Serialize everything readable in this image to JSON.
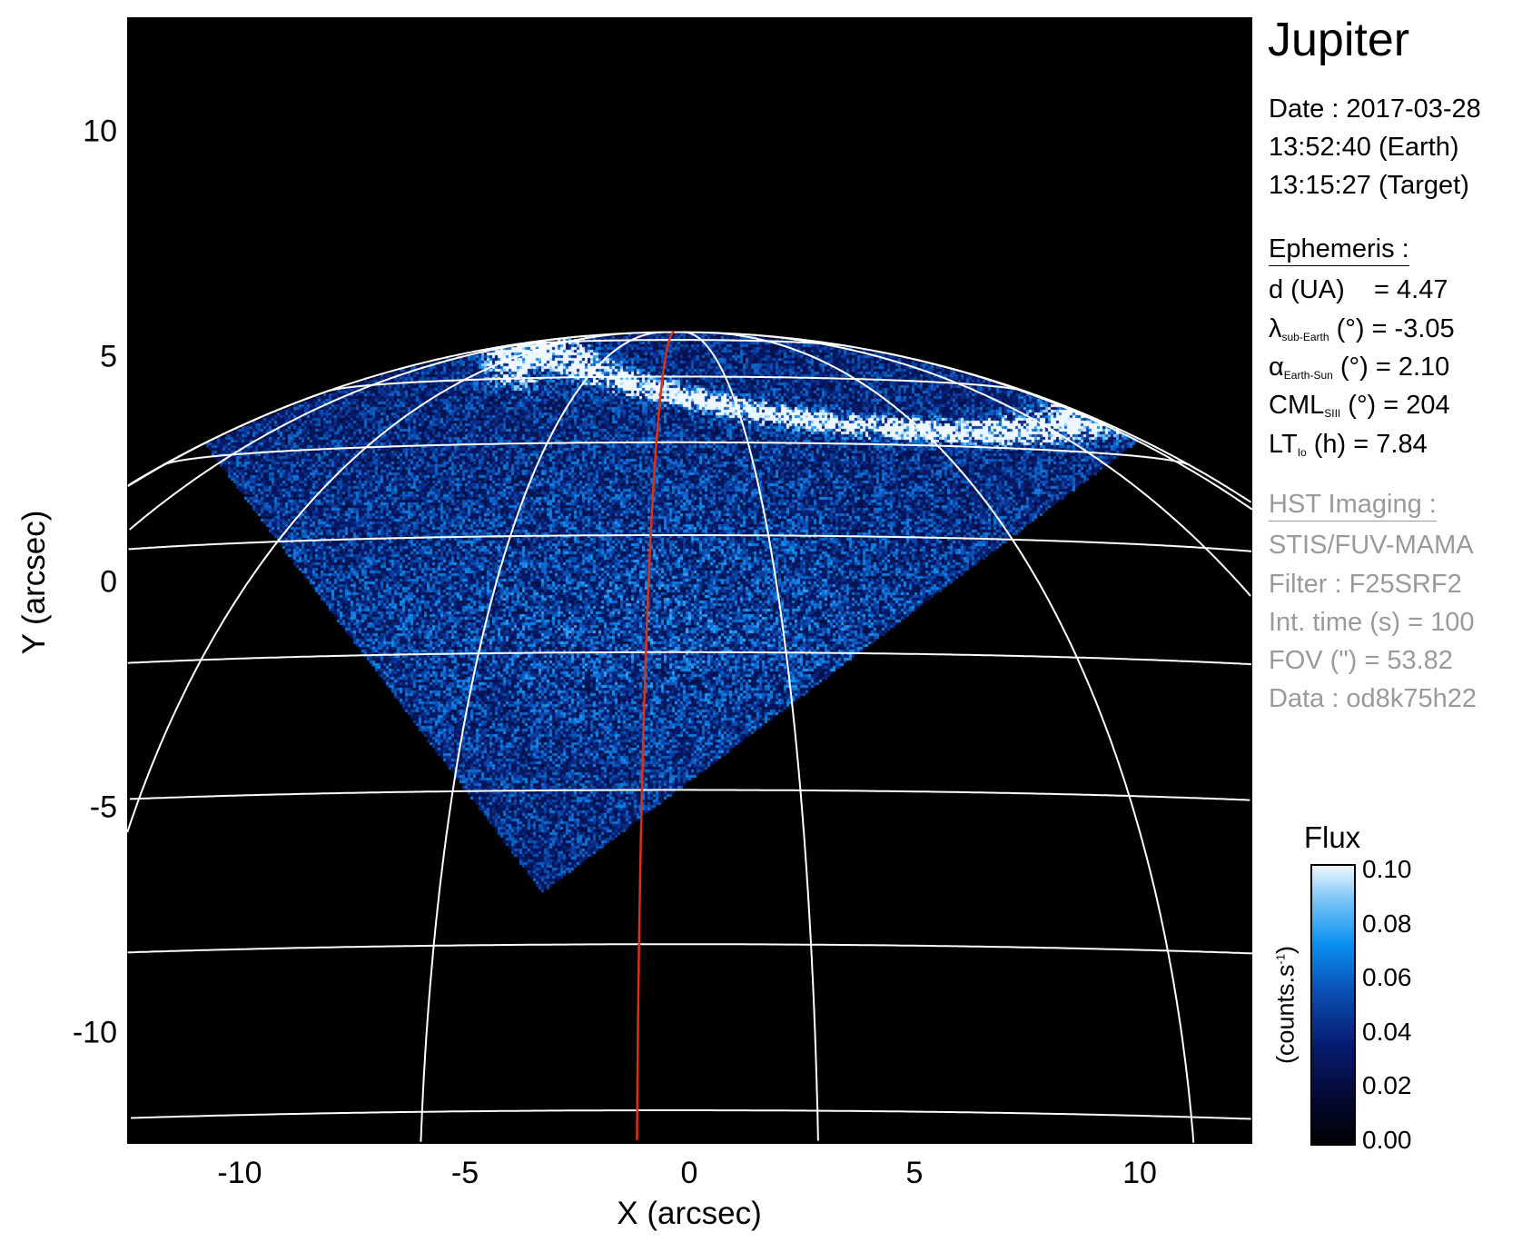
{
  "chart_data": {
    "type": "heatmap",
    "title": "Jupiter",
    "xlabel": "X (arcsec)",
    "ylabel": "Y (arcsec)",
    "xlim": [
      -12.5,
      12.5
    ],
    "ylim": [
      -12.5,
      12.5
    ],
    "xticks": [
      "-10",
      "-5",
      "0",
      "5",
      "10"
    ],
    "yticks": [
      "10",
      "5",
      "0",
      "-5",
      "-10"
    ],
    "xtick_values": [
      -10,
      -5,
      0,
      5,
      10
    ],
    "ytick_values": [
      10,
      5,
      0,
      -5,
      -10
    ],
    "background": "#000000",
    "grid_color": "#ffffff",
    "central_meridian_color": "#e03010",
    "colorbar": {
      "label": "Flux",
      "units": "(counts.s",
      "units_sup": "-1",
      "units_close": ")",
      "range": [
        0.0,
        0.1
      ],
      "ticks": [
        "0.10",
        "0.08",
        "0.06",
        "0.04",
        "0.02",
        "0.00"
      ],
      "tick_values": [
        0.1,
        0.08,
        0.06,
        0.04,
        0.02,
        0.0
      ],
      "colormap": [
        "#000004",
        "#071a6e",
        "#0a4fb5",
        "#0a90f0",
        "#eef7ff"
      ]
    }
  },
  "info": {
    "target": "Jupiter",
    "date": "Date : 2017-03-28",
    "time_earth": "13:52:40 (Earth)",
    "time_target": "13:15:27 (Target)",
    "ephemeris_title": "Ephemeris :",
    "ephemeris": [
      {
        "sym": "d (UA)",
        "sub": "",
        "rest": "    = 4.47"
      },
      {
        "sym": "λ",
        "sub": "sub-Earth",
        "rest": " (°) = -3.05"
      },
      {
        "sym": "α",
        "sub": "Earth-Sun",
        "rest": " (°) = 2.10"
      },
      {
        "sym": "CML",
        "sub": "SIII",
        "rest": " (°) = 204"
      },
      {
        "sym": "LT",
        "sub": "Io",
        "rest": " (h) = 7.84"
      }
    ],
    "imaging_title": "HST Imaging :",
    "imaging": [
      "STIS/FUV-MAMA",
      "Filter : F25SRF2",
      "Int. time (s) = 100",
      "FOV (\") = 53.82",
      "Data : od8k75h22"
    ]
  }
}
